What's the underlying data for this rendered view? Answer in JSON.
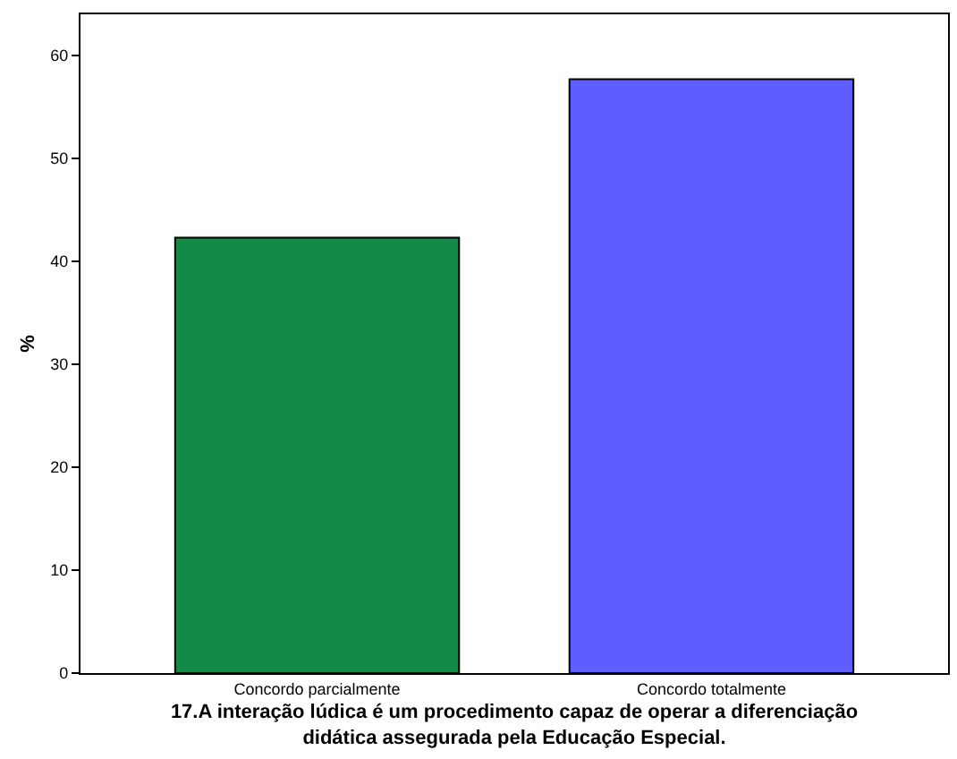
{
  "chart_data": {
    "type": "bar",
    "xlabel": "17.A interação lúdica é um procedimento capaz de operar a diferenciação\ndidática assegurada pela Educação Especial.",
    "ylabel": "%",
    "categories": [
      "Concordo parcialmente",
      "Concordo totalmente"
    ],
    "values": [
      42.3,
      57.7
    ],
    "colors": [
      "#138a48",
      "#5e5eff"
    ],
    "ylim": [
      0,
      64
    ],
    "yticks": [
      0,
      10,
      20,
      30,
      40,
      50,
      60
    ],
    "legend": false
  }
}
